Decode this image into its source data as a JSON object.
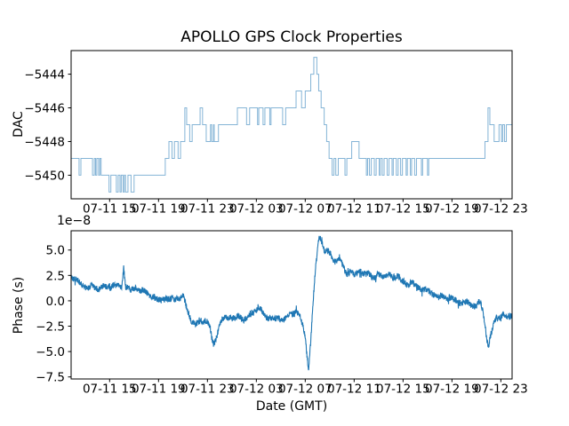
{
  "figure": {
    "title": "APOLLO GPS Clock Properties",
    "background_color": "#ffffff",
    "spine_color": "#000000",
    "line_color": "#1f77b4"
  },
  "chart_data": [
    {
      "type": "line",
      "subplot": "top",
      "title": "APOLLO GPS Clock Properties",
      "ylabel": "DAC",
      "drawstyle": "steps-post",
      "line_color": "#1f77b4",
      "line_alpha": 0.55,
      "grid": false,
      "legend": "none",
      "x_unit": "hours since 07-11 12:00 GMT (derived from tick labels)",
      "xlim": [
        -0.15,
        35.92
      ],
      "ylim": [
        -5451.4,
        -5442.6
      ],
      "xticks": [
        3,
        7,
        11,
        15,
        19,
        23,
        27,
        31,
        35
      ],
      "xtick_labels": [
        "07-11 15",
        "07-11 19",
        "07-11 23",
        "07-12 03",
        "07-12 07",
        "07-12 11",
        "07-12 15",
        "07-12 19",
        "07-12 23"
      ],
      "yticks": [
        -5444,
        -5446,
        -5448,
        -5450
      ],
      "ytick_labels": [
        "−5444",
        "−5446",
        "−5448",
        "−5450"
      ],
      "steps": [
        [
          -0.15,
          -5449
        ],
        [
          0.5,
          -5450
        ],
        [
          0.65,
          -5449
        ],
        [
          1.6,
          -5450
        ],
        [
          1.75,
          -5449
        ],
        [
          1.85,
          -5450
        ],
        [
          1.95,
          -5449
        ],
        [
          2.1,
          -5450
        ],
        [
          2.2,
          -5449
        ],
        [
          2.3,
          -5450
        ],
        [
          2.95,
          -5451
        ],
        [
          3.1,
          -5450
        ],
        [
          3.55,
          -5451
        ],
        [
          3.7,
          -5450
        ],
        [
          3.85,
          -5451
        ],
        [
          3.95,
          -5450
        ],
        [
          4.1,
          -5451
        ],
        [
          4.2,
          -5450
        ],
        [
          4.3,
          -5451
        ],
        [
          4.5,
          -5450
        ],
        [
          4.75,
          -5451
        ],
        [
          5.0,
          -5450
        ],
        [
          7.55,
          -5449
        ],
        [
          7.85,
          -5448
        ],
        [
          8.1,
          -5449
        ],
        [
          8.3,
          -5448
        ],
        [
          8.6,
          -5449
        ],
        [
          8.8,
          -5448
        ],
        [
          9.15,
          -5446
        ],
        [
          9.3,
          -5447
        ],
        [
          9.55,
          -5448
        ],
        [
          9.75,
          -5447
        ],
        [
          10.4,
          -5446
        ],
        [
          10.6,
          -5447
        ],
        [
          10.9,
          -5448
        ],
        [
          11.25,
          -5447
        ],
        [
          11.35,
          -5448
        ],
        [
          11.5,
          -5447
        ],
        [
          11.55,
          -5448
        ],
        [
          11.9,
          -5447
        ],
        [
          13.45,
          -5446
        ],
        [
          14.2,
          -5447
        ],
        [
          14.45,
          -5446
        ],
        [
          15.1,
          -5447
        ],
        [
          15.2,
          -5446
        ],
        [
          15.55,
          -5447
        ],
        [
          15.7,
          -5446
        ],
        [
          16.1,
          -5447
        ],
        [
          16.2,
          -5446
        ],
        [
          17.15,
          -5447
        ],
        [
          17.4,
          -5446
        ],
        [
          18.25,
          -5445
        ],
        [
          18.7,
          -5446
        ],
        [
          19.0,
          -5445
        ],
        [
          19.45,
          -5444
        ],
        [
          19.7,
          -5443
        ],
        [
          19.95,
          -5444
        ],
        [
          20.1,
          -5445
        ],
        [
          20.3,
          -5446
        ],
        [
          20.55,
          -5447
        ],
        [
          20.75,
          -5448
        ],
        [
          20.95,
          -5449
        ],
        [
          21.2,
          -5450
        ],
        [
          21.35,
          -5449
        ],
        [
          21.5,
          -5450
        ],
        [
          21.7,
          -5449
        ],
        [
          22.25,
          -5450
        ],
        [
          22.4,
          -5449
        ],
        [
          22.8,
          -5448
        ],
        [
          23.4,
          -5449
        ],
        [
          24.0,
          -5450
        ],
        [
          24.1,
          -5449
        ],
        [
          24.25,
          -5450
        ],
        [
          24.4,
          -5449
        ],
        [
          24.65,
          -5450
        ],
        [
          24.8,
          -5449
        ],
        [
          25.05,
          -5450
        ],
        [
          25.15,
          -5449
        ],
        [
          25.3,
          -5450
        ],
        [
          25.45,
          -5449
        ],
        [
          25.7,
          -5450
        ],
        [
          25.85,
          -5449
        ],
        [
          26.1,
          -5450
        ],
        [
          26.2,
          -5449
        ],
        [
          26.45,
          -5450
        ],
        [
          26.6,
          -5449
        ],
        [
          26.8,
          -5450
        ],
        [
          26.95,
          -5449
        ],
        [
          27.25,
          -5450
        ],
        [
          27.35,
          -5449
        ],
        [
          27.6,
          -5450
        ],
        [
          27.7,
          -5449
        ],
        [
          27.95,
          -5450
        ],
        [
          28.1,
          -5449
        ],
        [
          28.5,
          -5450
        ],
        [
          28.6,
          -5449
        ],
        [
          29.0,
          -5450
        ],
        [
          29.1,
          -5449
        ],
        [
          33.7,
          -5448
        ],
        [
          33.95,
          -5446
        ],
        [
          34.1,
          -5447
        ],
        [
          34.45,
          -5448
        ],
        [
          34.85,
          -5447
        ],
        [
          35.05,
          -5448
        ],
        [
          35.15,
          -5447
        ],
        [
          35.3,
          -5448
        ],
        [
          35.45,
          -5447
        ]
      ]
    },
    {
      "type": "line",
      "subplot": "bottom",
      "ylabel": "Phase (s)",
      "xlabel": "Date (GMT)",
      "y_offset_text": "1e−8",
      "y_scale_factor": 1e-08,
      "line_color": "#1f77b4",
      "line_alpha": 1.0,
      "grid": false,
      "legend": "none",
      "x_unit": "hours since 07-11 12:00 GMT (derived from tick labels)",
      "xlim": [
        -0.15,
        35.92
      ],
      "ylim": [
        -7.7,
        6.9
      ],
      "xticks": [
        3,
        7,
        11,
        15,
        19,
        23,
        27,
        31,
        35
      ],
      "xtick_labels": [
        "07-11 15",
        "07-11 19",
        "07-11 23",
        "07-12 03",
        "07-12 07",
        "07-12 11",
        "07-12 15",
        "07-12 19",
        "07-12 23"
      ],
      "yticks": [
        5.0,
        2.5,
        0.0,
        -2.5,
        -5.0,
        -7.5
      ],
      "ytick_labels": [
        "5.0",
        "2.5",
        "0.0",
        "−2.5",
        "−5.0",
        "−7.5"
      ],
      "noise_amplitude": 0.3,
      "n_points": 2200,
      "anchors": [
        [
          -0.15,
          2.3
        ],
        [
          0.5,
          1.9
        ],
        [
          1.0,
          1.4
        ],
        [
          1.5,
          1.6
        ],
        [
          2.0,
          1.2
        ],
        [
          2.5,
          1.4
        ],
        [
          3.0,
          1.1
        ],
        [
          3.5,
          1.3
        ],
        [
          4.0,
          1.2
        ],
        [
          4.15,
          3.2
        ],
        [
          4.3,
          1.3
        ],
        [
          5.0,
          1.1
        ],
        [
          5.5,
          0.9
        ],
        [
          6.0,
          0.6
        ],
        [
          6.5,
          0.2
        ],
        [
          7.0,
          0.0
        ],
        [
          7.5,
          -0.1
        ],
        [
          8.0,
          0.1
        ],
        [
          8.6,
          0.2
        ],
        [
          9.0,
          0.7
        ],
        [
          9.3,
          -0.5
        ],
        [
          9.7,
          -1.8
        ],
        [
          10.0,
          -2.2
        ],
        [
          10.4,
          -1.9
        ],
        [
          10.7,
          -2.3
        ],
        [
          11.0,
          -2.1
        ],
        [
          11.2,
          -2.6
        ],
        [
          11.35,
          -4.0
        ],
        [
          11.5,
          -4.6
        ],
        [
          11.65,
          -4.2
        ],
        [
          11.9,
          -3.0
        ],
        [
          12.2,
          -1.8
        ],
        [
          12.5,
          -1.6
        ],
        [
          13.0,
          -1.9
        ],
        [
          13.5,
          -1.7
        ],
        [
          14.0,
          -2.0
        ],
        [
          14.5,
          -1.7
        ],
        [
          15.0,
          -1.2
        ],
        [
          15.3,
          -0.9
        ],
        [
          15.6,
          -1.5
        ],
        [
          16.0,
          -1.8
        ],
        [
          16.5,
          -1.6
        ],
        [
          17.0,
          -1.7
        ],
        [
          17.5,
          -1.4
        ],
        [
          17.8,
          -0.9
        ],
        [
          18.0,
          -1.2
        ],
        [
          18.3,
          -1.0
        ],
        [
          18.6,
          -1.5
        ],
        [
          18.8,
          -2.2
        ],
        [
          19.0,
          -3.5
        ],
        [
          19.15,
          -5.5
        ],
        [
          19.28,
          -6.8
        ],
        [
          19.45,
          -4.0
        ],
        [
          19.6,
          -1.0
        ],
        [
          19.8,
          2.5
        ],
        [
          20.0,
          5.0
        ],
        [
          20.15,
          6.2
        ],
        [
          20.35,
          5.6
        ],
        [
          20.6,
          4.8
        ],
        [
          20.9,
          5.0
        ],
        [
          21.2,
          4.2
        ],
        [
          21.5,
          3.6
        ],
        [
          21.8,
          4.0
        ],
        [
          22.1,
          3.2
        ],
        [
          22.4,
          2.6
        ],
        [
          22.7,
          3.1
        ],
        [
          23.0,
          2.8
        ],
        [
          23.4,
          3.0
        ],
        [
          23.8,
          2.7
        ],
        [
          24.2,
          2.9
        ],
        [
          24.6,
          2.4
        ],
        [
          25.0,
          2.6
        ],
        [
          25.4,
          2.2
        ],
        [
          25.8,
          2.4
        ],
        [
          26.2,
          2.0
        ],
        [
          26.6,
          2.2
        ],
        [
          27.0,
          1.8
        ],
        [
          27.4,
          1.5
        ],
        [
          27.8,
          1.8
        ],
        [
          28.2,
          1.3
        ],
        [
          28.6,
          1.0
        ],
        [
          29.0,
          1.3
        ],
        [
          29.4,
          0.9
        ],
        [
          29.8,
          0.6
        ],
        [
          30.2,
          0.8
        ],
        [
          30.6,
          0.4
        ],
        [
          31.0,
          0.6
        ],
        [
          31.4,
          0.2
        ],
        [
          31.8,
          0.0
        ],
        [
          32.2,
          0.2
        ],
        [
          32.6,
          -0.2
        ],
        [
          33.0,
          -0.4
        ],
        [
          33.3,
          0.3
        ],
        [
          33.5,
          -0.6
        ],
        [
          33.7,
          -2.0
        ],
        [
          33.85,
          -3.6
        ],
        [
          34.0,
          -4.2
        ],
        [
          34.15,
          -3.2
        ],
        [
          34.35,
          -2.2
        ],
        [
          34.6,
          -1.6
        ],
        [
          34.9,
          -1.8
        ],
        [
          35.2,
          -1.4
        ],
        [
          35.5,
          -1.7
        ],
        [
          35.92,
          -1.3
        ]
      ]
    }
  ]
}
